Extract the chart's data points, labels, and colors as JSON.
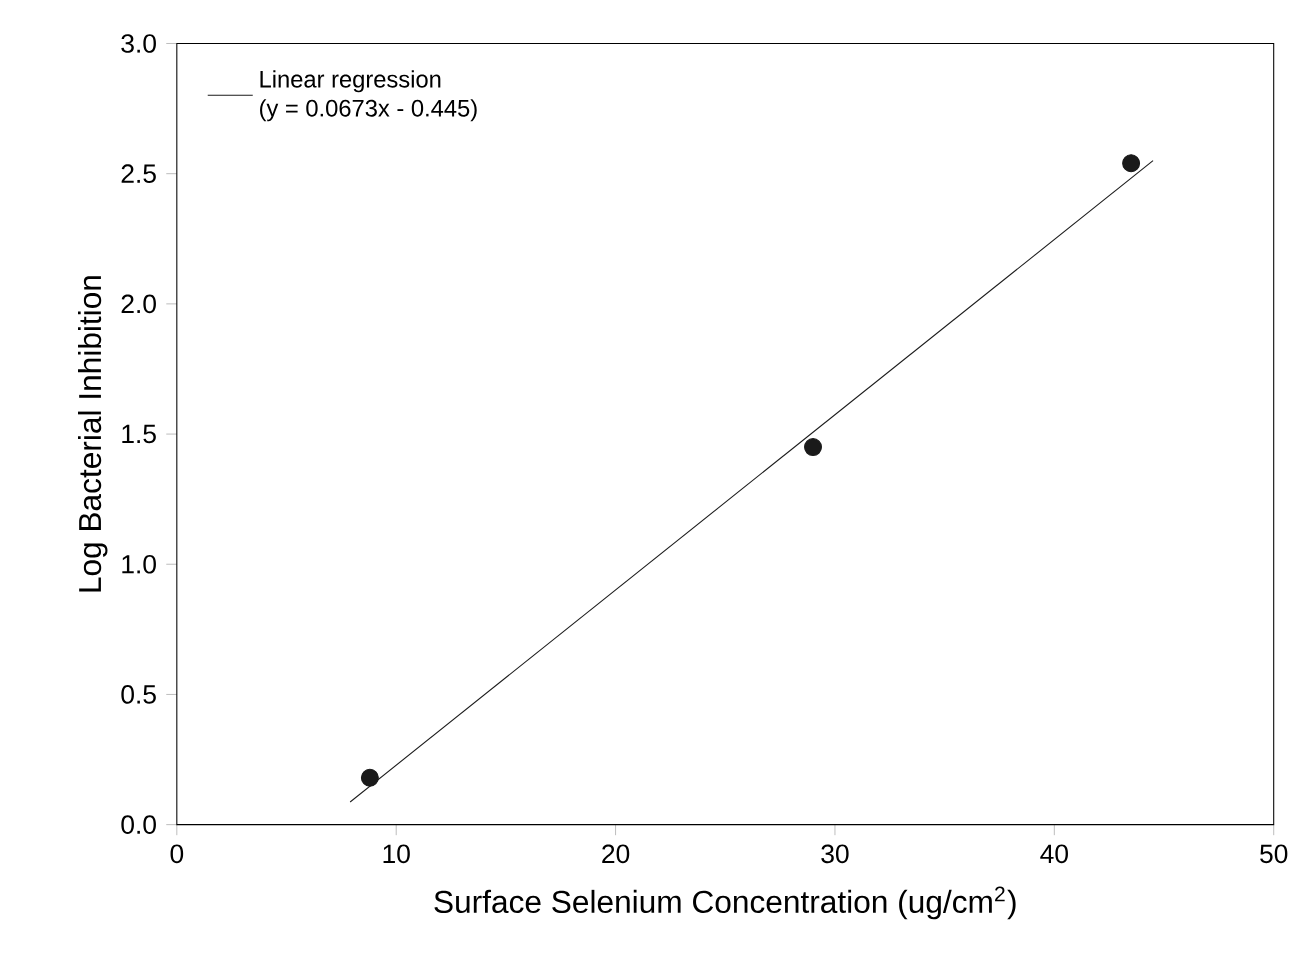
{
  "chart_data": {
    "type": "scatter",
    "xlabel": "Surface Selenium Concentration (ug/cm$^{2}$)",
    "ylabel": "Log Bacterial Inhibition",
    "series": [
      {
        "color": "#1a1a1a",
        "x": [
          8.8,
          29.0,
          43.5
        ],
        "values": [
          0.18,
          1.45,
          2.54
        ],
        "marker": "circle"
      },
      {
        "type": "line",
        "name": "Linear regression",
        "color": "#1a1a1a",
        "x": [
          7.9,
          44.5
        ],
        "values": [
          0.087,
          2.55
        ],
        "marker": "none",
        "line_style": "solid"
      }
    ],
    "annotations": [
      "(y = 0.0673x - 0.445)"
    ],
    "legend": "top left",
    "grid": false,
    "xlim": [
      0,
      50
    ],
    "ylim": [
      0,
      3
    ],
    "xticks": [
      0,
      10,
      20,
      30,
      40,
      50
    ],
    "yticks": [
      {
        "value": 0,
        "label": "0.0"
      },
      {
        "value": 0.5,
        "label": "0.5"
      },
      {
        "value": 1,
        "label": "1.0"
      },
      {
        "value": 1.5,
        "label": "1.5"
      },
      {
        "value": 2,
        "label": "2.0"
      },
      {
        "value": 2.5,
        "label": "2.5"
      },
      {
        "value": 3,
        "label": "3.0"
      }
    ]
  }
}
